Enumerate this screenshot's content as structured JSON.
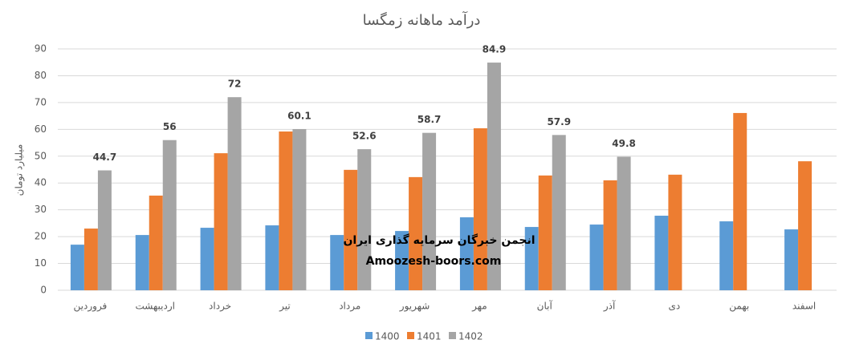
{
  "chart_data": {
    "type": "bar",
    "title": "درآمد ماهانه زمگسا",
    "y_label": "میلیارد تومان",
    "categories": [
      "فروردین",
      "اردیبهشت",
      "خرداد",
      "تیر",
      "مرداد",
      "شهریور",
      "مهر",
      "آبان",
      "آذر",
      "دی",
      "بهمن",
      "اسفند"
    ],
    "series": [
      {
        "name": "1400",
        "color": "#5b9bd5",
        "values": [
          17.0,
          20.6,
          23.3,
          24.2,
          20.6,
          22.1,
          27.2,
          23.6,
          24.5,
          27.8,
          25.7,
          22.7
        ]
      },
      {
        "name": "1401",
        "color": "#ed7d31",
        "values": [
          23.0,
          35.3,
          51.1,
          59.2,
          44.9,
          42.2,
          60.4,
          42.8,
          41.0,
          43.1,
          66.1,
          48.1
        ]
      },
      {
        "name": "1402",
        "color": "#a5a5a5",
        "values": [
          44.7,
          56,
          72,
          60.1,
          52.6,
          58.7,
          84.9,
          57.9,
          49.8,
          null,
          null,
          null
        ],
        "data_labels": true
      }
    ],
    "ylim": [
      0,
      90
    ],
    "yticks": [
      0,
      10,
      20,
      30,
      40,
      50,
      60,
      70,
      80,
      90
    ],
    "grid": true,
    "legend": "bottom",
    "annotations": [
      "انجمن خبرگان سرمایه گذاری ایران",
      "Amoozesh-boors.com"
    ]
  }
}
